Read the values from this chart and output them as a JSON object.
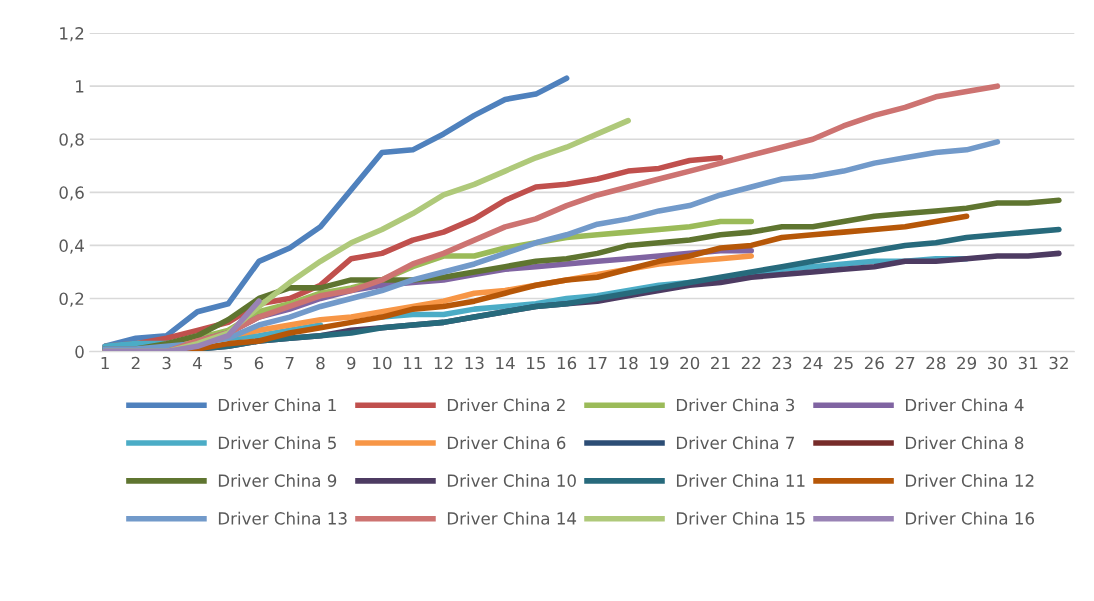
{
  "chart_data": {
    "type": "line",
    "categories": [
      "1",
      "2",
      "3",
      "4",
      "5",
      "6",
      "7",
      "8",
      "9",
      "10",
      "11",
      "12",
      "13",
      "14",
      "15",
      "16",
      "17",
      "18",
      "19",
      "20",
      "21",
      "22",
      "23",
      "24",
      "25",
      "26",
      "27",
      "28",
      "29",
      "30",
      "31",
      "32"
    ],
    "ylim": [
      0,
      1.2
    ],
    "yticks": [
      0,
      {
        "value": 0.2,
        "label": "0,2"
      },
      {
        "value": 0.4,
        "label": "0,4"
      },
      {
        "value": 0.6,
        "label": "0,6"
      },
      {
        "value": 0.8,
        "label": "0,8"
      },
      1,
      {
        "value": 1.2,
        "label": "1,2"
      }
    ],
    "grid": "y",
    "legend": "bottom",
    "marker": "none",
    "line_style": "solid",
    "series": [
      {
        "name": "Driver China 1",
        "color": "#4f81bd",
        "values": [
          0.02,
          0.05,
          0.06,
          0.15,
          0.18,
          0.34,
          0.39,
          0.47,
          0.61,
          0.75,
          0.76,
          0.82,
          0.89,
          0.95,
          0.97,
          1.03,
          null,
          null,
          null,
          null,
          null,
          null,
          null,
          null,
          null,
          null,
          null,
          null,
          null,
          null,
          null,
          null
        ]
      },
      {
        "name": "Driver China 2",
        "color": "#c0504d",
        "values": [
          0.02,
          0.03,
          0.05,
          0.08,
          0.11,
          0.18,
          0.2,
          0.25,
          0.35,
          0.37,
          0.42,
          0.45,
          0.5,
          0.57,
          0.62,
          0.63,
          0.65,
          0.68,
          0.69,
          0.72,
          0.73,
          null,
          null,
          null,
          null,
          null,
          null,
          null,
          null,
          null,
          null,
          null
        ]
      },
      {
        "name": "Driver China 3",
        "color": "#9bbb59",
        "values": [
          0.01,
          0.01,
          0.02,
          0.05,
          0.08,
          0.15,
          0.18,
          0.22,
          0.24,
          0.27,
          0.32,
          0.36,
          0.36,
          0.39,
          0.41,
          0.43,
          0.44,
          0.45,
          0.46,
          0.47,
          0.49,
          0.49,
          null,
          null,
          null,
          null,
          null,
          null,
          null,
          null,
          null,
          null
        ]
      },
      {
        "name": "Driver China 4",
        "color": "#8064a2",
        "values": [
          0.01,
          0.01,
          0.02,
          0.04,
          0.07,
          0.13,
          0.16,
          0.2,
          0.23,
          0.25,
          0.26,
          0.27,
          0.29,
          0.31,
          0.32,
          0.33,
          0.34,
          0.35,
          0.36,
          0.37,
          0.38,
          0.38,
          null,
          null,
          null,
          null,
          null,
          null,
          null,
          null,
          null,
          null
        ]
      },
      {
        "name": "Driver China 5",
        "color": "#4bacc6",
        "values": [
          0.02,
          0.03,
          0.03,
          0.04,
          0.05,
          0.06,
          0.08,
          0.1,
          null,
          0.13,
          0.14,
          0.14,
          0.16,
          0.17,
          0.18,
          0.2,
          0.21,
          0.23,
          0.25,
          0.26,
          0.27,
          0.29,
          0.31,
          0.32,
          0.33,
          0.34,
          0.34,
          0.35,
          0.35,
          null,
          null,
          null
        ]
      },
      {
        "name": "Driver China 6",
        "color": "#f79646",
        "values": [
          null,
          null,
          0.02,
          0.04,
          0.06,
          0.08,
          0.1,
          0.12,
          0.13,
          0.15,
          0.17,
          0.19,
          0.22,
          0.23,
          0.25,
          0.27,
          0.29,
          0.31,
          0.33,
          0.34,
          0.35,
          0.36,
          null,
          null,
          null,
          null,
          null,
          null,
          null,
          null,
          null,
          null
        ]
      },
      {
        "name": "Driver China 7",
        "color": "#2c4d75",
        "values": [
          null,
          null,
          null,
          null,
          null,
          null,
          null,
          null,
          null,
          null,
          null,
          null,
          null,
          null,
          null,
          null,
          null,
          null,
          null,
          null,
          null,
          null,
          null,
          null,
          null,
          null,
          null,
          null,
          null,
          null,
          null,
          null
        ]
      },
      {
        "name": "Driver China 8",
        "color": "#772c2a",
        "values": [
          null,
          null,
          null,
          null,
          null,
          null,
          null,
          null,
          null,
          null,
          null,
          null,
          null,
          null,
          null,
          null,
          null,
          null,
          null,
          null,
          null,
          null,
          null,
          null,
          null,
          null,
          null,
          null,
          null,
          null,
          null,
          null
        ]
      },
      {
        "name": "Driver China 9",
        "color": "#5f7530",
        "values": [
          0.01,
          0.01,
          0.03,
          0.06,
          0.12,
          0.2,
          0.24,
          0.24,
          0.27,
          0.27,
          0.27,
          0.28,
          0.3,
          0.32,
          0.34,
          0.35,
          0.37,
          0.4,
          0.41,
          0.42,
          0.44,
          0.45,
          0.47,
          0.47,
          0.49,
          0.51,
          0.52,
          0.53,
          0.54,
          0.56,
          0.56,
          0.57
        ]
      },
      {
        "name": "Driver China 10",
        "color": "#4d3b62",
        "values": [
          0,
          0,
          0,
          0.01,
          0.02,
          0.04,
          0.05,
          0.06,
          0.08,
          0.09,
          0.1,
          0.11,
          0.13,
          0.15,
          0.17,
          0.18,
          0.19,
          0.21,
          0.23,
          0.25,
          0.26,
          0.28,
          0.29,
          0.3,
          0.31,
          0.32,
          0.34,
          0.34,
          0.35,
          0.36,
          0.36,
          0.37
        ]
      },
      {
        "name": "Driver China 11",
        "color": "#276a7c",
        "values": [
          0,
          0,
          0,
          0.01,
          0.02,
          0.04,
          0.05,
          0.06,
          0.07,
          0.09,
          0.1,
          0.11,
          0.13,
          0.15,
          0.17,
          0.18,
          0.2,
          0.22,
          0.24,
          0.26,
          0.28,
          0.3,
          0.32,
          0.34,
          0.36,
          0.38,
          0.4,
          0.41,
          0.43,
          0.44,
          0.45,
          0.46
        ]
      },
      {
        "name": "Driver China 12",
        "color": "#b65708",
        "values": [
          0,
          0,
          0,
          0.01,
          0.03,
          0.04,
          0.07,
          0.09,
          0.11,
          0.13,
          0.16,
          0.17,
          0.19,
          0.22,
          0.25,
          0.27,
          0.28,
          0.31,
          0.34,
          0.36,
          0.39,
          0.4,
          0.43,
          0.44,
          0.45,
          0.46,
          0.47,
          0.49,
          0.51,
          null,
          null,
          null
        ]
      },
      {
        "name": "Driver China 13",
        "color": "#729aca",
        "values": [
          0.01,
          0.01,
          0.02,
          0.03,
          0.05,
          0.1,
          0.13,
          0.17,
          0.2,
          0.23,
          0.27,
          0.3,
          0.33,
          0.37,
          0.41,
          0.44,
          0.48,
          0.5,
          0.53,
          0.55,
          0.59,
          0.62,
          0.65,
          0.66,
          0.68,
          0.71,
          0.73,
          0.75,
          0.76,
          0.79,
          null,
          null
        ]
      },
      {
        "name": "Driver China 14",
        "color": "#cd7371",
        "values": [
          0,
          0,
          0,
          0.04,
          0.07,
          0.13,
          0.17,
          0.21,
          0.23,
          0.27,
          0.33,
          0.37,
          0.42,
          0.47,
          0.5,
          0.55,
          0.59,
          0.62,
          0.65,
          0.68,
          0.71,
          0.74,
          0.77,
          0.8,
          0.85,
          0.89,
          0.92,
          0.96,
          0.98,
          1.0,
          null,
          null
        ]
      },
      {
        "name": "Driver China 15",
        "color": "#afc97a",
        "values": [
          0,
          0,
          0,
          0.03,
          0.07,
          0.17,
          0.26,
          0.34,
          0.41,
          0.46,
          0.52,
          0.59,
          0.63,
          0.68,
          0.73,
          0.77,
          0.82,
          0.87,
          null,
          null,
          null,
          null,
          null,
          null,
          null,
          null,
          null,
          null,
          null,
          null,
          null,
          null
        ]
      },
      {
        "name": "Driver China 16",
        "color": "#9983b5",
        "values": [
          0,
          0,
          0,
          0.02,
          0.06,
          0.19,
          null,
          null,
          null,
          null,
          null,
          null,
          null,
          null,
          null,
          null,
          null,
          null,
          null,
          null,
          null,
          null,
          null,
          null,
          null,
          null,
          null,
          null,
          null,
          null,
          null,
          null
        ]
      }
    ]
  }
}
